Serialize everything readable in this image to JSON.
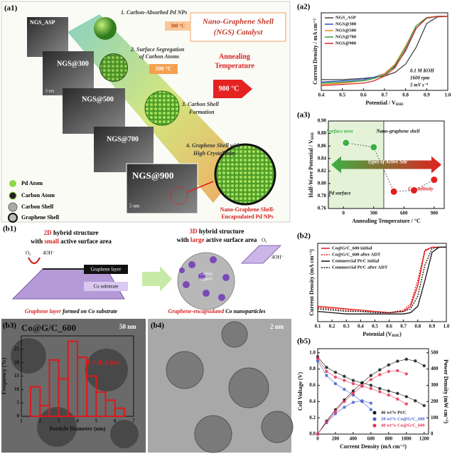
{
  "figure": {
    "a1": {
      "label": "(a1)",
      "title": [
        "Nano-Graphene Shell",
        "(NGS) Catalyst"
      ],
      "steps": [
        [
          "1. Carbon-Absorbed Pd NPs"
        ],
        [
          "2. Surface Segregation",
          "of Carbon Atoms"
        ],
        [
          "3. Carbon Shell",
          "Formation"
        ],
        [
          "4. Graphene Shell with",
          "High Crystallinity"
        ]
      ],
      "samples": [
        "NGS_ASP",
        "NGS@300",
        "NGS@500",
        "NGS@700",
        "NGS@900"
      ],
      "scale_bar": "5 nm",
      "axis": [
        "Annealing",
        "Temperature"
      ],
      "temps": [
        "300 °C",
        "500 °C",
        "900 °C"
      ],
      "legend": [
        "Pd Atom",
        "Carbon Atom",
        "Carbon Shell",
        "Graphene Shell"
      ],
      "product": [
        "Nano-Graphene Shell-",
        "Encapsulated Pd NPs"
      ]
    },
    "b1": {
      "label": "(b1)",
      "left_title": [
        "2D",
        " hybrid structure",
        "with ",
        "small",
        " active surface area"
      ],
      "right_title": [
        "3D",
        " hybrid structure",
        "with ",
        "large",
        " active surface area"
      ],
      "o2": "O₂",
      "oh": "4OH⁻",
      "graphene_layer": "Graphene layer",
      "co_substrate": "Co substrate",
      "carbon_support": [
        "Carbon",
        "support"
      ],
      "left_caption": [
        "Graphene layer",
        " formed on Co substrate"
      ],
      "right_caption": [
        "Graphene-encapsulated",
        " Co nanoparticles"
      ]
    },
    "b3": {
      "label": "(b3)",
      "sample": "Co@G/C_600",
      "scale_bar": "50 nm",
      "mean": "d = 4.1 nm"
    },
    "b4": {
      "label": "(b4)",
      "scale_bar": "2 nm"
    }
  },
  "chart_data": [
    {
      "type": "line",
      "label": "(a2)",
      "ylabel": "Current Density / mA cm⁻²",
      "xlabel": "Potential / V",
      "xlabel_sub": "RHE",
      "x": [
        0.4,
        0.5,
        0.6,
        0.65,
        0.7,
        0.75,
        0.8,
        0.85,
        0.9,
        0.95,
        1.0
      ],
      "xlim": [
        0.4,
        1.0
      ],
      "xticks": [
        0.4,
        0.5,
        0.6,
        0.7,
        0.8,
        0.9,
        {
          "value": 1,
          "label": "1.0"
        }
      ],
      "ylim": [
        -6.2,
        0.3
      ],
      "legend": "upper left",
      "series": [
        {
          "name": "NGS_ASP",
          "color": "#444444",
          "values": [
            -5.3,
            -5.3,
            -5.2,
            -5.1,
            -5.0,
            -4.7,
            -4.0,
            -2.6,
            -0.6,
            -0.05,
            0
          ]
        },
        {
          "name": "NGS@300",
          "color": "#3050c8",
          "values": [
            -5.5,
            -5.4,
            -5.3,
            -5.1,
            -4.8,
            -4.2,
            -2.9,
            -1.0,
            -0.15,
            0,
            0
          ]
        },
        {
          "name": "NGS@500",
          "color": "#f08a24",
          "values": [
            -5.7,
            -5.6,
            -5.4,
            -5.2,
            -4.8,
            -4.0,
            -2.5,
            -0.8,
            -0.1,
            0,
            0
          ]
        },
        {
          "name": "NGS@700",
          "color": "#2e9e3a",
          "values": [
            -5.6,
            -5.5,
            -5.4,
            -5.2,
            -4.9,
            -4.1,
            -2.6,
            -0.8,
            -0.1,
            0,
            0
          ]
        },
        {
          "name": "NGS@900",
          "color": "#d62828",
          "values": [
            -5.8,
            -5.7,
            -5.6,
            -5.4,
            -5.0,
            -4.3,
            -2.8,
            -1.0,
            -0.15,
            0,
            0
          ]
        }
      ],
      "annotations": [
        "0.1 M KOH",
        "1600 rpm",
        "5 mV s⁻¹"
      ]
    },
    {
      "type": "scatter",
      "label": "(a3)",
      "ylabel": "Half-Wave Potential / V",
      "ylabel_sub": "RHE",
      "xlabel": "Annealing Temperature / °C",
      "x": [
        25,
        300,
        500,
        700,
        900
      ],
      "values": [
        0.865,
        0.858,
        0.787,
        0.789,
        0.806
      ],
      "point_colors": [
        "#3cb043",
        "#3cb043",
        "#e02020",
        "#e02020",
        "#e02020"
      ],
      "xlim": [
        -150,
        1000
      ],
      "xticks": [
        0,
        300,
        600,
        900
      ],
      "ylim": [
        0.76,
        0.9
      ],
      "yticks": [
        0.76,
        0.78,
        {
          "value": 0.8,
          "label": "0.80"
        },
        0.82,
        0.84,
        0.86,
        0.88,
        {
          "value": 0.9,
          "label": "0.90"
        }
      ],
      "annotations": [
        "Surface area",
        "Nano-graphene shell",
        "Types of Active Site",
        "Pd surface",
        "Crystallinity"
      ]
    },
    {
      "type": "line",
      "label": "(b2)",
      "ylabel": "Current Density (mA cm⁻²)",
      "xlabel": "Potential (V",
      "xlabel_sub": "RHE",
      "xlabel_end": ")",
      "x": [
        0.1,
        0.2,
        0.3,
        0.4,
        0.5,
        0.6,
        0.7,
        0.75,
        0.8,
        0.85,
        0.9,
        0.95,
        1.0
      ],
      "xlim": [
        0.1,
        1.0
      ],
      "xticks": [
        0.1,
        0.2,
        0.3,
        0.4,
        0.5,
        0.6,
        0.7,
        0.8,
        0.9,
        {
          "value": 1,
          "label": "1.0"
        }
      ],
      "ylim": [
        -5.8,
        0.3
      ],
      "legend": "upper left",
      "series": [
        {
          "name": "Co@G/C_600 initial",
          "color": "#e01818",
          "values": [
            -4.6,
            -4.7,
            -4.8,
            -4.9,
            -5.0,
            -5.1,
            -5.0,
            -4.6,
            -3.0,
            -0.3,
            0,
            0,
            0
          ]
        },
        {
          "name": "Co@G/C_600 after ADT",
          "color": "#e01818",
          "dash": true,
          "values": [
            -4.7,
            -4.8,
            -4.9,
            -5.0,
            -5.0,
            -5.1,
            -4.9,
            -4.4,
            -2.6,
            -0.2,
            0,
            0,
            0
          ]
        },
        {
          "name": "Commercial Pt/C initial",
          "color": "#111111",
          "values": [
            -5.0,
            -5.1,
            -5.2,
            -5.2,
            -5.2,
            -5.2,
            -5.2,
            -5.1,
            -4.6,
            -2.6,
            -0.4,
            0,
            0
          ]
        },
        {
          "name": "Commercial Pt/C after ADT",
          "color": "#111111",
          "dash": true,
          "values": [
            -4.8,
            -4.9,
            -5.0,
            -5.0,
            -5.1,
            -5.1,
            -5.0,
            -4.8,
            -3.8,
            -1.4,
            -0.1,
            0,
            0
          ]
        }
      ]
    },
    {
      "type": "line",
      "label": "(b5)",
      "markers": true,
      "ylabel": "Cell Voltage (V)",
      "y2label": "Power Density (mW cm⁻²)",
      "xlabel": "Current Density (mA cm⁻²)",
      "x": [
        0,
        100,
        200,
        300,
        400,
        500,
        600,
        700,
        800,
        900,
        1000,
        1100,
        1200
      ],
      "xlim": [
        0,
        1250
      ],
      "xticks": [
        0,
        200,
        400,
        600,
        800,
        1000,
        1200
      ],
      "ylim": [
        0,
        1.05
      ],
      "yticks": [
        {
          "value": 0,
          "label": "0.0"
        },
        0.2,
        0.4,
        0.6,
        0.8,
        {
          "value": 1,
          "label": "1.0"
        }
      ],
      "y2lim": [
        0,
        525
      ],
      "y2ticks": [
        0,
        100,
        200,
        300,
        400,
        500
      ],
      "legend": "lower right",
      "series": [
        {
          "name": "46 wt% Pt/C",
          "color": "#111111",
          "values": [
            0.95,
            0.82,
            0.76,
            0.71,
            0.66,
            0.63,
            0.6,
            0.56,
            0.53,
            0.5,
            0.46,
            0.41,
            0.35
          ]
        },
        {
          "name": "20 wt% Co@G/C_600",
          "color": "#4060d0",
          "values": [
            0.9,
            0.72,
            0.62,
            0.55,
            0.48,
            0.4,
            0.3,
            null,
            null,
            null,
            null,
            null,
            null
          ]
        },
        {
          "name": "40 wt% Co@G/C_600",
          "color": "#e83050",
          "values": [
            0.93,
            0.77,
            0.7,
            0.66,
            0.62,
            0.59,
            0.56,
            0.52,
            0.48,
            0.43,
            0.37,
            null,
            null
          ]
        },
        {
          "color": "#111111",
          "axis": "y2",
          "values": [
            0,
            80,
            150,
            210,
            265,
            315,
            360,
            395,
            425,
            448,
            460,
            450,
            420
          ]
        },
        {
          "color": "#4060d0",
          "axis": "y2",
          "values": [
            0,
            70,
            125,
            165,
            195,
            205,
            190,
            null,
            null,
            null,
            null,
            null,
            null
          ]
        },
        {
          "color": "#e83050",
          "axis": "y2",
          "values": [
            0,
            75,
            140,
            200,
            250,
            295,
            335,
            365,
            385,
            390,
            370,
            null,
            null
          ]
        }
      ]
    },
    {
      "type": "histogram",
      "ylabel": "Frequency (%)",
      "xlabel": "Particle Diameter (nm)",
      "color": "#e01818",
      "bins": [
        1.5,
        2,
        2.5,
        3,
        3.5,
        4,
        4.5,
        5,
        5.5,
        6,
        6.5
      ],
      "values": [
        11,
        4,
        21,
        14,
        28,
        22,
        15,
        9,
        6,
        3
      ],
      "xlim": [
        1,
        7
      ],
      "xticks": [
        1,
        2,
        3,
        4,
        5,
        6,
        7
      ],
      "ylim": [
        0,
        30
      ],
      "yticks": [
        0,
        5,
        10,
        15,
        20,
        25
      ]
    }
  ]
}
